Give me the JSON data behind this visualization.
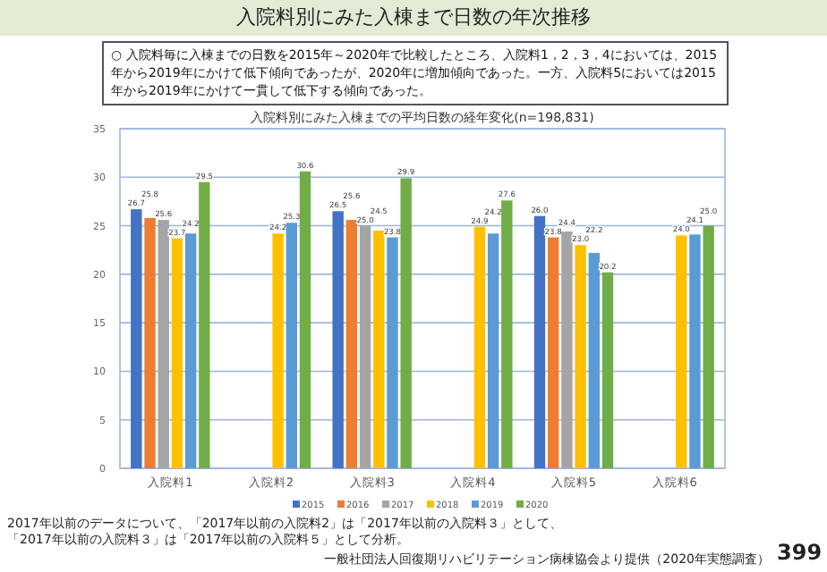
{
  "chart_data": {
    "type": "bar",
    "title": "入院料別にみた入棟まで日数の年次推移",
    "subtitle": "○ 入院料毎に入棟までの日数を2015年～2020年で比較したところ、入院料1，2，3，4においては、2015年から2019年にかけて低下傾向であったが、2020年に増加傾向であった。一方、入院料5においては2015年から2019年にかけて一貫して低下する傾向であった。",
    "xlabel": "入院料別にみた入棟までの平均日数の経年変化(n=198,831)",
    "categories": [
      "入院料1",
      "入院料2",
      "入院料3",
      "入院料4",
      "入院料5",
      "入院料6"
    ],
    "series": [
      {
        "name": "2015",
        "color": "#4472c4",
        "values": [
          26.7,
          null,
          26.5,
          null,
          26.0,
          null
        ],
        "value_labels": [
          "26.7",
          null,
          "26.5",
          null,
          "26.0",
          null
        ]
      },
      {
        "name": "2016",
        "color": "#ed7d31",
        "values": [
          25.8,
          null,
          25.6,
          null,
          23.8,
          null
        ],
        "value_labels": [
          "25.8",
          null,
          "25.6",
          null,
          "23.8",
          null
        ]
      },
      {
        "name": "2017",
        "color": "#a5a5a5",
        "values": [
          25.6,
          null,
          25.0,
          null,
          24.4,
          null
        ],
        "value_labels": [
          "25.6",
          null,
          "25.0",
          null,
          "24.4",
          null
        ]
      },
      {
        "name": "2018",
        "color": "#ffc000",
        "values": [
          23.7,
          24.2,
          24.5,
          24.9,
          23.0,
          24.0
        ],
        "value_labels": [
          "23.7",
          "24.2",
          "24.5",
          "24.9",
          "23.0",
          "24.0"
        ]
      },
      {
        "name": "2019",
        "color": "#5b9bd5",
        "values": [
          24.2,
          25.3,
          23.8,
          24.2,
          22.2,
          24.1
        ],
        "value_labels": [
          "24.2",
          "25.3",
          "23.8",
          "24.2",
          "22.2",
          "24.1"
        ]
      },
      {
        "name": "2020",
        "color": "#70ad47",
        "values": [
          29.5,
          30.6,
          29.9,
          27.6,
          20.2,
          25.0
        ],
        "value_labels": [
          "29.5",
          "30.6",
          "29.9",
          "27.6",
          "20.2",
          "25.0"
        ]
      }
    ],
    "ylim": [
      0,
      35
    ],
    "yticks": [
      0,
      5,
      10,
      15,
      20,
      25,
      30,
      35
    ],
    "grid": "y",
    "legend": "bottom",
    "annotations": [
      "2017年以前のデータについて、「2017年以前の入院料2」は「2017年以前の入院料３」として、「2017年以前の入院料３」は「2017年以前の入院料５」として分析。",
      "一般社団法人回復期リハビリテーション病棟協会より提供（2020年実態調査）",
      "399"
    ]
  }
}
